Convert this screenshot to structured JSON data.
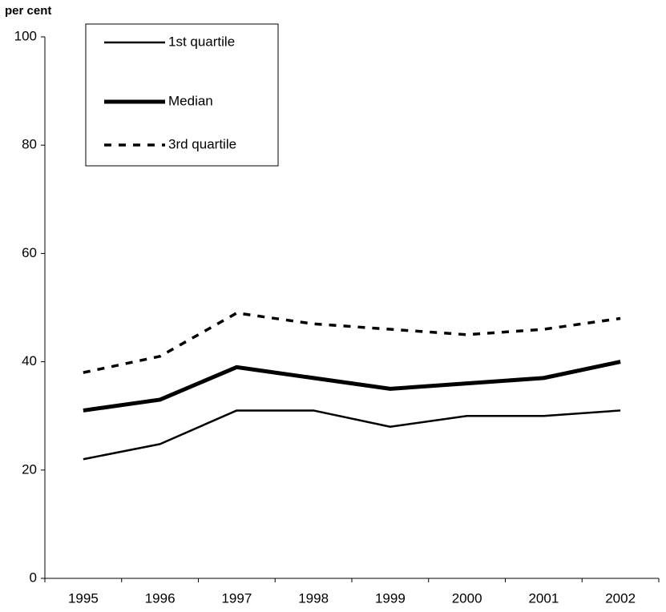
{
  "chart_data": {
    "type": "line",
    "y_label": "per cent",
    "categories": [
      "1995",
      "1996",
      "1997",
      "1998",
      "1999",
      "2000",
      "2001",
      "2002"
    ],
    "series": [
      {
        "name": "1st quartile",
        "color": "#000000",
        "values": [
          22,
          24.8,
          31,
          31,
          28,
          30,
          30,
          31
        ]
      },
      {
        "name": "Median",
        "color": "#000000",
        "values": [
          31,
          33,
          39,
          37,
          35,
          36,
          37,
          40
        ]
      },
      {
        "name": "3rd quartile",
        "color": "#000000",
        "values": [
          38,
          41,
          49,
          47,
          46,
          45,
          46,
          48
        ]
      }
    ],
    "ylim": [
      0,
      100
    ],
    "yticks": [
      0,
      20,
      40,
      60,
      80,
      100
    ],
    "grid": false,
    "legend": "upper left"
  }
}
